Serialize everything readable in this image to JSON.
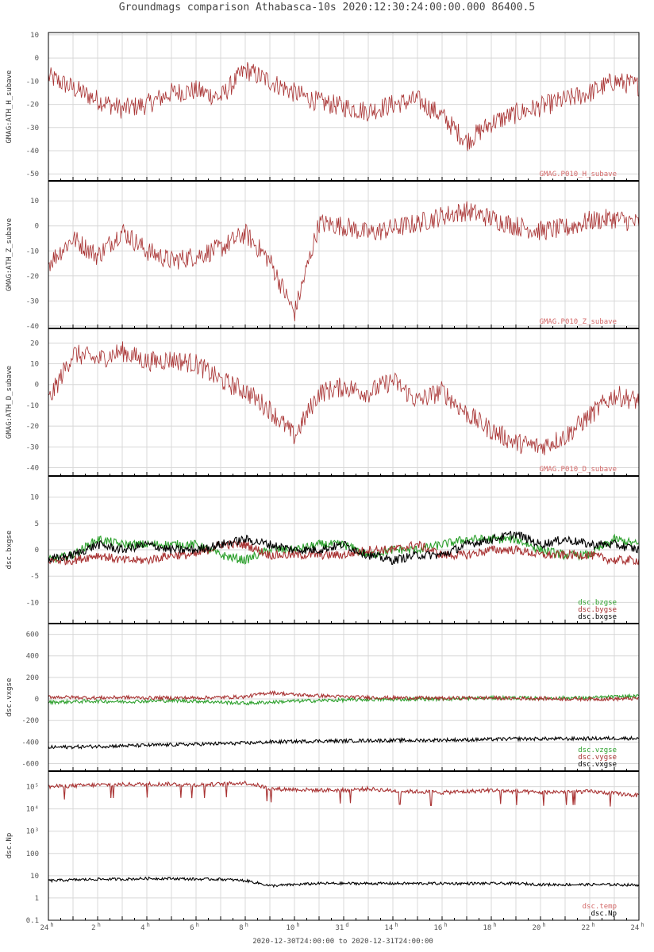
{
  "page": {
    "title": "Groundmags comparison Athabasca-10s 2020:12:30:24:00:00.000 86400.5",
    "footer": "2020-12-30T24:00:00 to 2020-12-31T24:00:00"
  },
  "colors": {
    "red": "#a83232",
    "green": "#2ca02c",
    "black": "#000000",
    "grid": "#d8d8d8"
  },
  "chart_data": [
    {
      "type": "line",
      "ylabel": "GMAG:ATH_H_subave",
      "ylim": [
        -53,
        11
      ],
      "yticks": [
        10,
        0,
        -10,
        -20,
        -30,
        -40,
        -50
      ],
      "ytick_labels": [
        "10",
        "0",
        "-10",
        "-20",
        "-30",
        "-40",
        "-50"
      ],
      "legend": [
        {
          "name": "GMAG.P010_H_subave",
          "color": "#d46a6a"
        }
      ],
      "series": [
        {
          "name": "GMAG:ATH_H_subave",
          "color": "#a83232",
          "x": [
            0,
            1,
            2,
            3,
            4,
            5,
            6,
            7,
            8,
            9,
            10,
            11,
            12,
            13,
            14,
            15,
            16,
            17,
            18,
            19,
            20,
            21,
            22,
            23,
            24
          ],
          "y": [
            -8,
            -13,
            -18,
            -22,
            -20,
            -15,
            -14,
            -17,
            -5,
            -10,
            -15,
            -19,
            -21,
            -23,
            -20,
            -18,
            -25,
            -36,
            -28,
            -24,
            -21,
            -18,
            -15,
            -10,
            -12
          ]
        }
      ]
    },
    {
      "type": "line",
      "ylabel": "GMAG:ATH_Z_subave",
      "ylim": [
        -41,
        18
      ],
      "yticks": [
        10,
        0,
        -10,
        -20,
        -30,
        -40
      ],
      "ytick_labels": [
        "10",
        "0",
        "-10",
        "-20",
        "-30",
        "-40"
      ],
      "legend": [
        {
          "name": "GMAG.P010_Z_subave",
          "color": "#d46a6a"
        }
      ],
      "series": [
        {
          "name": "GMAG:ATH_Z_subave",
          "color": "#a83232",
          "x": [
            0,
            1,
            2,
            3,
            4,
            5,
            6,
            7,
            8,
            9,
            10,
            11,
            12,
            13,
            14,
            15,
            16,
            17,
            18,
            19,
            20,
            21,
            22,
            23,
            24
          ],
          "y": [
            -15,
            -5,
            -12,
            -2,
            -10,
            -14,
            -12,
            -9,
            -3,
            -14,
            -35,
            1,
            0,
            -3,
            -1,
            1,
            4,
            6,
            3,
            0,
            -2,
            -1,
            2,
            3,
            1
          ]
        }
      ]
    },
    {
      "type": "line",
      "ylabel": "GMAG:ATH_D_subave",
      "ylim": [
        -44,
        27
      ],
      "yticks": [
        20,
        10,
        0,
        -10,
        -20,
        -30,
        -40
      ],
      "ytick_labels": [
        "20",
        "10",
        "0",
        "-10",
        "-20",
        "-30",
        "-40"
      ],
      "legend": [
        {
          "name": "GMAG.P010_D_subave",
          "color": "#d46a6a"
        }
      ],
      "series": [
        {
          "name": "GMAG:ATH_D_subave",
          "color": "#a83232",
          "x": [
            0,
            1,
            2,
            3,
            4,
            5,
            6,
            7,
            8,
            9,
            10,
            11,
            12,
            13,
            14,
            15,
            16,
            17,
            18,
            19,
            20,
            21,
            22,
            23,
            24
          ],
          "y": [
            -8,
            15,
            12,
            16,
            11,
            12,
            10,
            2,
            -3,
            -12,
            -25,
            -4,
            -1,
            -4,
            2,
            -8,
            -3,
            -14,
            -22,
            -28,
            -30,
            -25,
            -15,
            -5,
            -8
          ]
        }
      ]
    },
    {
      "type": "line",
      "ylabel": "dsc.bxgse",
      "ylim": [
        -14,
        14
      ],
      "yticks": [
        10,
        5,
        0,
        -5,
        -10
      ],
      "ytick_labels": [
        "10",
        "5",
        "0",
        "-5",
        "-10"
      ],
      "legend": [
        {
          "name": "dsc.bzgse",
          "color": "#2ca02c"
        },
        {
          "name": "dsc.bygse",
          "color": "#a83232"
        },
        {
          "name": "dsc.bxgse",
          "color": "#000000"
        }
      ],
      "series": [
        {
          "name": "dsc.bzgse",
          "color": "#2ca02c",
          "x": [
            0,
            1,
            2,
            3,
            4,
            5,
            6,
            7,
            8,
            9,
            10,
            11,
            12,
            13,
            14,
            15,
            16,
            17,
            18,
            19,
            20,
            21,
            22,
            23,
            24
          ],
          "y": [
            -2,
            -1,
            2,
            1,
            1,
            1,
            1,
            -1,
            -2,
            0,
            0,
            1,
            1,
            -1,
            0,
            0,
            1,
            2,
            2,
            2,
            0,
            -1,
            -1,
            2,
            1
          ]
        },
        {
          "name": "dsc.bygse",
          "color": "#a83232",
          "x": [
            0,
            1,
            2,
            3,
            4,
            5,
            6,
            7,
            8,
            9,
            10,
            11,
            12,
            13,
            14,
            15,
            16,
            17,
            18,
            19,
            20,
            21,
            22,
            23,
            24
          ],
          "y": [
            -2,
            -2,
            -1,
            -2,
            -2,
            -1,
            -1,
            1,
            1,
            -1,
            -1,
            -1,
            -1,
            0,
            0,
            1,
            -1,
            -1,
            0,
            0,
            -1,
            -1,
            -1,
            -2,
            -2
          ]
        },
        {
          "name": "dsc.bxgse",
          "color": "#000000",
          "x": [
            0,
            1,
            2,
            3,
            4,
            5,
            6,
            7,
            8,
            9,
            10,
            11,
            12,
            13,
            14,
            15,
            16,
            17,
            18,
            19,
            20,
            21,
            22,
            23,
            24
          ],
          "y": [
            -2,
            -1,
            1,
            0,
            1,
            0,
            0,
            1,
            2,
            1,
            0,
            0,
            1,
            -1,
            -2,
            -1,
            -1,
            1,
            2,
            3,
            1,
            2,
            1,
            1,
            0
          ]
        }
      ]
    },
    {
      "type": "line",
      "ylabel": "dsc.vxgse",
      "ylim": [
        -670,
        700
      ],
      "yticks": [
        600,
        400,
        200,
        0,
        -200,
        -400,
        -600
      ],
      "ytick_labels": [
        "600",
        "400",
        "200",
        "0",
        "-200",
        "-400",
        "-600"
      ],
      "legend": [
        {
          "name": "dsc.vzgse",
          "color": "#2ca02c"
        },
        {
          "name": "dsc.vygse",
          "color": "#a83232"
        },
        {
          "name": "dsc.vxgse",
          "color": "#000000"
        }
      ],
      "series": [
        {
          "name": "dsc.vzgse",
          "color": "#2ca02c",
          "x": [
            0,
            1,
            2,
            3,
            4,
            5,
            6,
            7,
            8,
            9,
            10,
            11,
            12,
            13,
            14,
            15,
            16,
            17,
            18,
            19,
            20,
            21,
            22,
            23,
            24
          ],
          "y": [
            -30,
            -25,
            -20,
            -25,
            -20,
            -15,
            -20,
            -30,
            -40,
            -30,
            -20,
            -15,
            -10,
            -5,
            -5,
            0,
            0,
            5,
            10,
            10,
            5,
            10,
            10,
            20,
            25
          ]
        },
        {
          "name": "dsc.vygse",
          "color": "#a83232",
          "x": [
            0,
            1,
            2,
            3,
            4,
            5,
            6,
            7,
            8,
            9,
            10,
            11,
            12,
            13,
            14,
            15,
            16,
            17,
            18,
            19,
            20,
            21,
            22,
            23,
            24
          ],
          "y": [
            20,
            15,
            10,
            15,
            10,
            10,
            10,
            15,
            20,
            60,
            40,
            30,
            20,
            15,
            10,
            10,
            5,
            10,
            10,
            5,
            5,
            0,
            0,
            0,
            5
          ]
        },
        {
          "name": "dsc.vxgse",
          "color": "#000000",
          "x": [
            0,
            1,
            2,
            3,
            4,
            5,
            6,
            7,
            8,
            9,
            10,
            11,
            12,
            13,
            14,
            15,
            16,
            17,
            18,
            19,
            20,
            21,
            22,
            23,
            24
          ],
          "y": [
            -450,
            -445,
            -440,
            -435,
            -430,
            -425,
            -420,
            -415,
            -410,
            -400,
            -395,
            -390,
            -390,
            -385,
            -385,
            -385,
            -380,
            -380,
            -375,
            -370,
            -370,
            -370,
            -368,
            -365,
            -365
          ]
        }
      ]
    },
    {
      "type": "line",
      "ylabel": "dsc.Np",
      "yscale": "log",
      "ylim": [
        0.1,
        500000
      ],
      "yticks": [
        100000,
        10000,
        1000,
        100,
        10,
        1,
        0.1
      ],
      "ytick_labels": [
        "10⁵",
        "10⁴",
        "10³",
        "100",
        "10",
        "1",
        "0.1"
      ],
      "legend": [
        {
          "name": "dsc.temp",
          "color": "#d46a6a"
        },
        {
          "name": "dsc.Np",
          "color": "#000000"
        }
      ],
      "series": [
        {
          "name": "dsc.temp",
          "color": "#a83232",
          "x": [
            0,
            1,
            2,
            3,
            4,
            5,
            6,
            7,
            8,
            9,
            10,
            11,
            12,
            13,
            14,
            15,
            16,
            17,
            18,
            19,
            20,
            21,
            22,
            23,
            24
          ],
          "y": [
            100000,
            110000,
            120000,
            125000,
            130000,
            130000,
            120000,
            130000,
            150000,
            80000,
            75000,
            70000,
            70000,
            80000,
            65000,
            60000,
            55000,
            60000,
            70000,
            60000,
            55000,
            60000,
            60000,
            50000,
            40000
          ]
        },
        {
          "name": "dsc.Np",
          "color": "#000000",
          "x": [
            0,
            1,
            2,
            3,
            4,
            5,
            6,
            7,
            8,
            9,
            10,
            11,
            12,
            13,
            14,
            15,
            16,
            17,
            18,
            19,
            20,
            21,
            22,
            23,
            24
          ],
          "y": [
            6,
            6.5,
            7,
            7,
            7.5,
            7.5,
            7,
            7,
            6,
            3.5,
            4,
            4.5,
            4.5,
            4.5,
            4.5,
            4.5,
            4.5,
            4.5,
            4.5,
            4.5,
            4,
            4,
            4,
            4,
            3.8
          ]
        }
      ]
    }
  ],
  "x_axis": {
    "range": [
      0,
      24
    ],
    "tick_labels": [
      {
        "num": "24",
        "sup": "h"
      },
      {
        "num": "2",
        "sup": "h"
      },
      {
        "num": "4",
        "sup": "h"
      },
      {
        "num": "6",
        "sup": "h"
      },
      {
        "num": "8",
        "sup": "h"
      },
      {
        "num": "10",
        "sup": "h"
      },
      {
        "num": "31",
        "sup": "d"
      },
      {
        "num": "14",
        "sup": "h"
      },
      {
        "num": "16",
        "sup": "h"
      },
      {
        "num": "18",
        "sup": "h"
      },
      {
        "num": "20",
        "sup": "h"
      },
      {
        "num": "22",
        "sup": "h"
      },
      {
        "num": "24",
        "sup": "h"
      }
    ]
  }
}
